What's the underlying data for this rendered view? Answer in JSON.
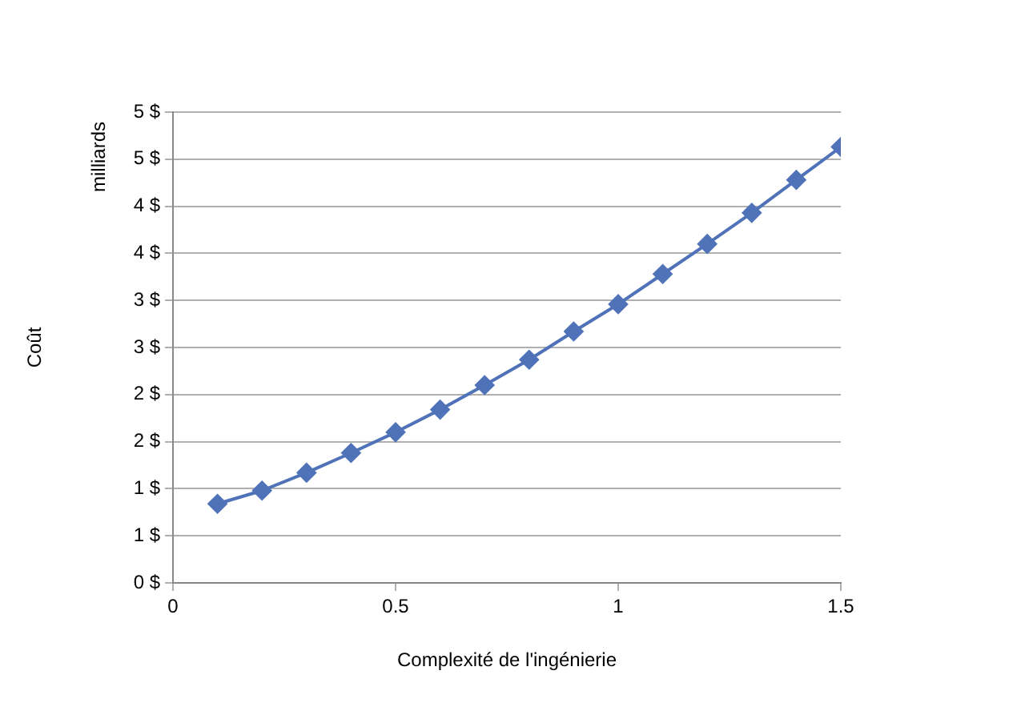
{
  "chart_data": {
    "type": "line",
    "xlabel": "Complexité de l'ingénierie",
    "ylabel": "Coût",
    "annotations": [
      "milliards"
    ],
    "x": [
      0.1,
      0.2,
      0.3,
      0.4,
      0.5,
      0.6,
      0.7,
      0.8,
      0.9,
      1.0,
      1.1,
      1.2,
      1.3,
      1.4,
      1.5
    ],
    "series": [
      {
        "color": "#4f72b8",
        "values": [
          0.84,
          0.98,
          1.17,
          1.38,
          1.6,
          1.84,
          2.1,
          2.37,
          2.67,
          2.96,
          3.28,
          3.6,
          3.93,
          4.28,
          4.63
        ]
      }
    ],
    "xlim": [
      0,
      1.5
    ],
    "xticks": [
      0,
      0.5,
      1,
      1.5
    ],
    "ylim": [
      0,
      5
    ],
    "yticks": [
      {
        "value": 0,
        "label": "0 $"
      },
      {
        "value": 0.5,
        "label": "1 $"
      },
      {
        "value": 1,
        "label": "1 $"
      },
      {
        "value": 1.5,
        "label": "2 $"
      },
      {
        "value": 2,
        "label": "2 $"
      },
      {
        "value": 2.5,
        "label": "3 $"
      },
      {
        "value": 3,
        "label": "3 $"
      },
      {
        "value": 3.5,
        "label": "4 $"
      },
      {
        "value": 4,
        "label": "4 $"
      },
      {
        "value": 4.5,
        "label": "5 $"
      },
      {
        "value": 5,
        "label": "5 $"
      }
    ],
    "grid": "y",
    "legend": false,
    "marker": "diamond",
    "line_style": "solid"
  }
}
